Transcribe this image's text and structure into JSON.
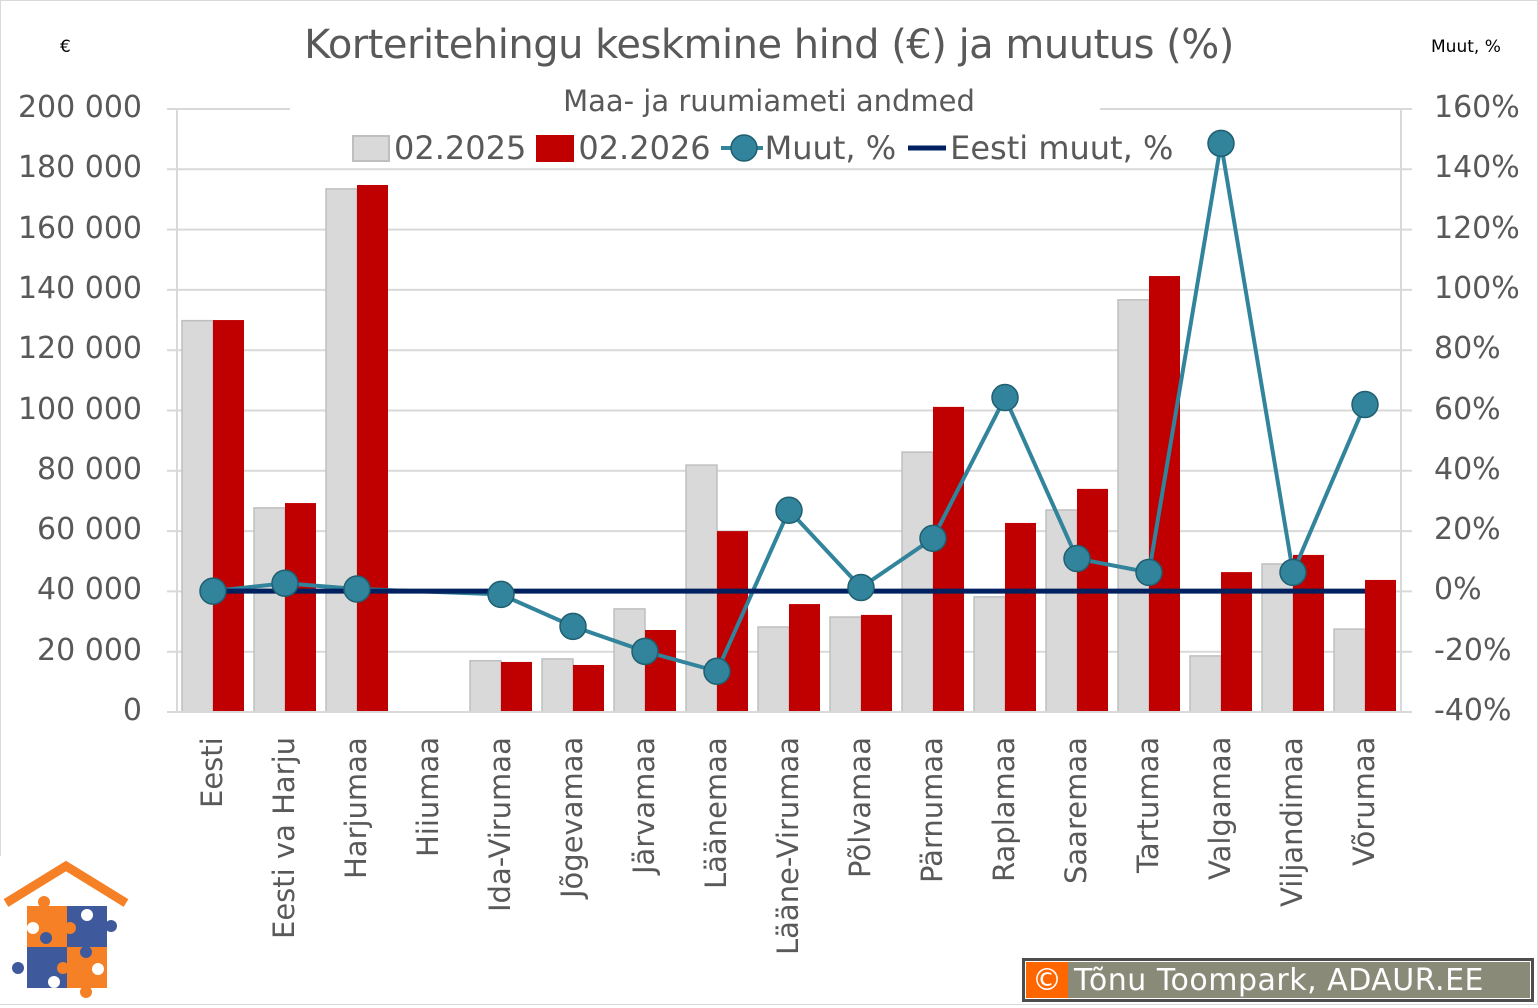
{
  "chart_data": {
    "type": "bar",
    "title": "Korteritehingu keskmine hind (€) ja muutus (%)",
    "subtitle": "Maa- ja ruumiameti andmed",
    "left_axis_unit": "€",
    "right_axis_unit": "Muut, %",
    "xlabel": "",
    "ylabel": "€",
    "ylabel_right": "Muut, %",
    "ylim": [
      0,
      200000
    ],
    "ylim_right": [
      -0.4,
      1.6
    ],
    "grid": true,
    "legend_position": "top",
    "y_ticks": [
      "0",
      "20 000",
      "40 000",
      "60 000",
      "80 000",
      "100 000",
      "120 000",
      "140 000",
      "160 000",
      "180 000",
      "200 000"
    ],
    "y_ticks_right": [
      "-40%",
      "-20%",
      "0%",
      "20%",
      "40%",
      "60%",
      "80%",
      "100%",
      "120%",
      "140%",
      "160%"
    ],
    "categories": [
      "Eesti",
      "Eesti va Harju",
      "Harjumaa",
      "Hiiumaa",
      "Ida-Virumaa",
      "Jõgevamaa",
      "Järvamaa",
      "Läänemaa",
      "Lääne-Virumaa",
      "Põlvamaa",
      "Pärnumaa",
      "Raplamaa",
      "Saaremaa",
      "Tartumaa",
      "Valgamaa",
      "Viljandimaa",
      "Võrumaa"
    ],
    "series": [
      {
        "name": "02.2025",
        "type": "bar",
        "axis": "left",
        "color": "#d9d9d9",
        "values": [
          129800,
          67700,
          173500,
          null,
          17000,
          17600,
          34200,
          81900,
          28200,
          31500,
          86200,
          38200,
          67000,
          136700,
          18600,
          49100,
          27500
        ]
      },
      {
        "name": "02.2026",
        "type": "bar",
        "axis": "left",
        "color": "#c00000",
        "values": [
          130000,
          69300,
          174800,
          null,
          16600,
          15600,
          27200,
          60000,
          35800,
          32200,
          101200,
          62700,
          74000,
          144600,
          46400,
          52100,
          43800
        ]
      },
      {
        "name": "Muut, %",
        "type": "line",
        "axis": "right",
        "color": "#31849b",
        "marker": "circle",
        "values": [
          0.001,
          0.027,
          0.008,
          null,
          -0.01,
          -0.116,
          -0.199,
          -0.265,
          0.269,
          0.013,
          0.176,
          0.643,
          0.109,
          0.063,
          1.486,
          0.063,
          0.62
        ]
      },
      {
        "name": "Eesti muut, %",
        "type": "line",
        "axis": "right",
        "color": "#002060",
        "values": [
          0.001,
          0.001,
          0.001,
          0.001,
          0.001,
          0.001,
          0.001,
          0.001,
          0.001,
          0.001,
          0.001,
          0.001,
          0.001,
          0.001,
          0.001,
          0.001,
          0.001
        ]
      }
    ]
  },
  "legend": [
    {
      "label": "02.2025",
      "kind": "bar",
      "color": "#d9d9d9"
    },
    {
      "label": "02.2026",
      "kind": "bar",
      "color": "#c00000"
    },
    {
      "label": "Muut, %",
      "kind": "line-marker",
      "color": "#31849b"
    },
    {
      "label": "Eesti muut, %",
      "kind": "line",
      "color": "#002060"
    }
  ],
  "credit": {
    "symbol": "©",
    "text": "Tõnu Toompark, ADAUR.EE"
  },
  "colors": {
    "gridline": "#d9d9d9",
    "axis_text": "#595959",
    "gray_bar_border": "#bfbfbf",
    "marker_border": "#1f5f70"
  }
}
